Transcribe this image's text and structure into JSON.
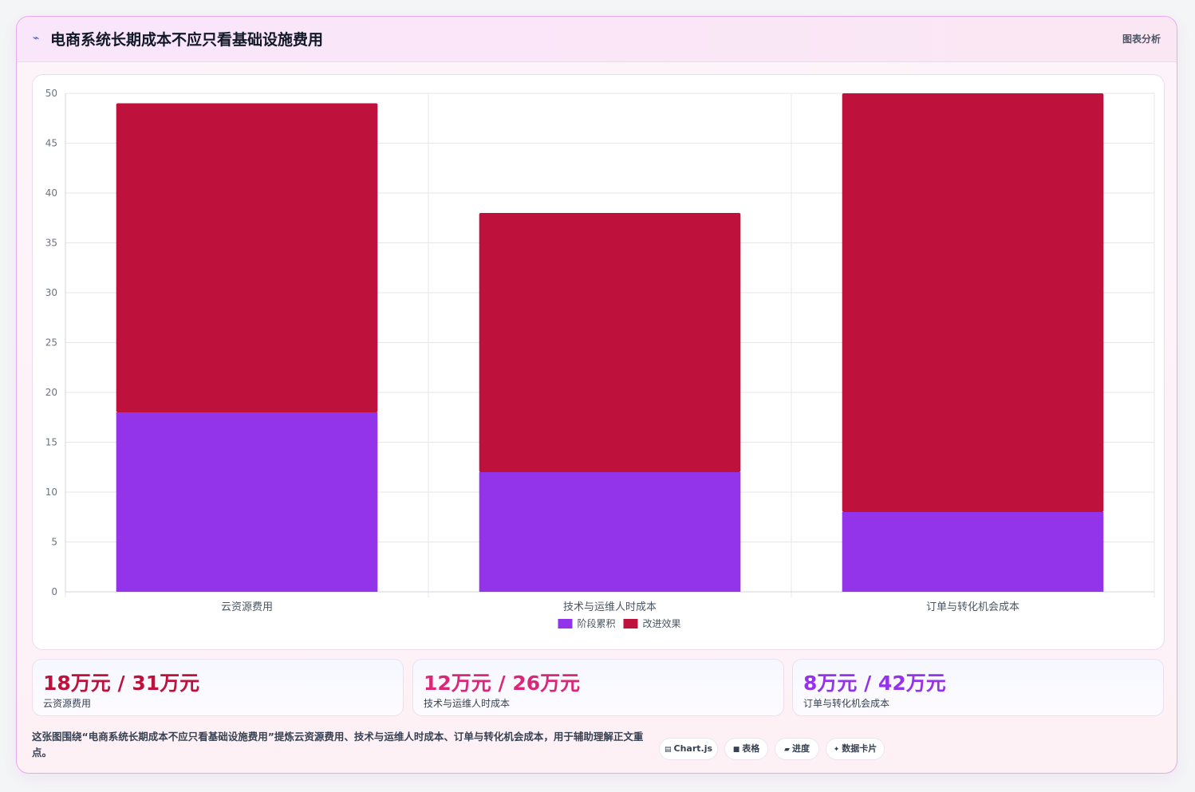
{
  "header": {
    "logo_icon": "chart-line-icon",
    "title": "电商系统长期成本不应只看基础设施费用",
    "tag": "图表分析"
  },
  "chart_data": {
    "type": "bar",
    "stacked": true,
    "categories": [
      "云资源费用",
      "技术与运维人时成本",
      "订单与转化机会成本"
    ],
    "series": [
      {
        "name": "阶段累积",
        "values": [
          18,
          12,
          8
        ],
        "color": "#9333ea"
      },
      {
        "name": "改进效果",
        "values": [
          31,
          26,
          42
        ],
        "color": "#be123c"
      }
    ],
    "ylim": [
      0,
      50
    ],
    "yticks": [
      0,
      5,
      10,
      15,
      20,
      25,
      30,
      35,
      40,
      45,
      50
    ],
    "grid": true,
    "legend": "bottom"
  },
  "stats": [
    {
      "value": "18万元 / 31万元",
      "label": "云资源费用",
      "color": "#be123c"
    },
    {
      "value": "12万元 / 26万元",
      "label": "技术与运维人时成本",
      "color": "#db2777"
    },
    {
      "value": "8万元 / 42万元",
      "label": "订单与转化机会成本",
      "color": "#9333ea"
    }
  ],
  "description": "这张图围绕“电商系统长期成本不应只看基础设施费用”提炼云资源费用、技术与运维人时成本、订单与转化机会成本，用于辅助理解正文重点。",
  "chips": [
    {
      "icon": "▤",
      "icon_name": "chart-icon",
      "label": "Chart.js"
    },
    {
      "icon": "■",
      "icon_name": "table-icon",
      "label": "表格"
    },
    {
      "icon": "▰",
      "icon_name": "progress-icon",
      "label": "进度"
    },
    {
      "icon": "✦",
      "icon_name": "sparkle-icon",
      "label": "数据卡片"
    }
  ]
}
